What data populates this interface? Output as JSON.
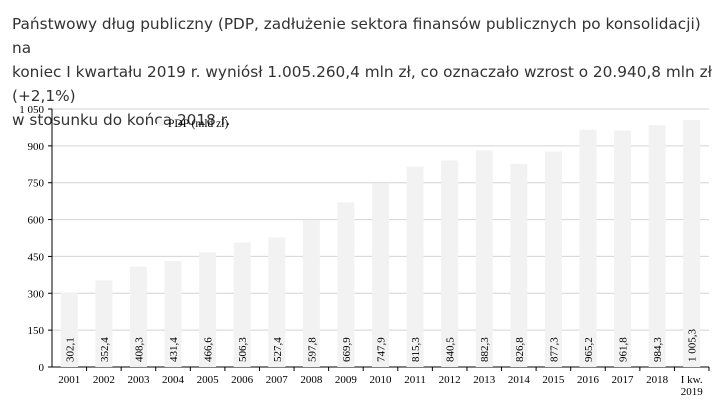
{
  "caption": {
    "line1": "Państwowy dług publiczny (PDP, zadłużenie sektora finansów publicznych po konsolidacji) na",
    "line2": "koniec I kwartału 2019 r. wyniósł 1.005.260,4 mln zł, co oznaczało wzrost o 20.940,8 mln zł (+2,1%)",
    "line3": "w stosunku do końca 2018 r."
  },
  "chart_data": {
    "type": "bar",
    "title": "",
    "xlabel": "",
    "ylabel": "",
    "ylim": [
      0,
      1050
    ],
    "yticks": [
      0,
      150,
      300,
      450,
      600,
      750,
      900,
      1050
    ],
    "ytick_labels": [
      "0",
      "150",
      "300",
      "450",
      "600",
      "750",
      "900",
      "1 050"
    ],
    "grid": true,
    "legend_position": "top-left",
    "bar_color": "#f2f2f2",
    "categories": [
      "2001",
      "2002",
      "2003",
      "2004",
      "2005",
      "2006",
      "2007",
      "2008",
      "2009",
      "2010",
      "2011",
      "2012",
      "2013",
      "2014",
      "2015",
      "2016",
      "2017",
      "2018",
      "I kw. 2019"
    ],
    "series": [
      {
        "name": "PDP (mld zł)",
        "values": [
          302.1,
          352.4,
          408.3,
          431.4,
          466.6,
          506.3,
          527.4,
          597.8,
          669.9,
          747.9,
          815.3,
          840.5,
          882.3,
          826.8,
          877.3,
          965.2,
          961.8,
          984.3,
          1005.3
        ],
        "labels": [
          "302,1",
          "352,4",
          "408,3",
          "431,4",
          "466,6",
          "506,3",
          "527,4",
          "597,8",
          "669,9",
          "747,9",
          "815,3",
          "840,5",
          "882,3",
          "826,8",
          "877,3",
          "965,2",
          "961,8",
          "984,3",
          "1 005,3"
        ]
      }
    ]
  }
}
